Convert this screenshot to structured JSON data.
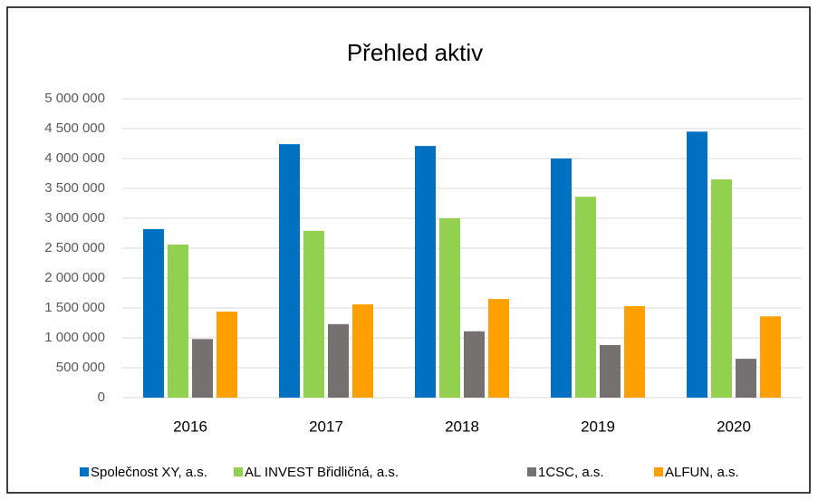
{
  "chart_data": {
    "type": "bar",
    "title": "Přehled aktiv",
    "categories": [
      "2016",
      "2017",
      "2018",
      "2019",
      "2020"
    ],
    "series": [
      {
        "name": "Společnost XY, a.s.",
        "color": "#0070c0",
        "values": [
          2820000,
          4240000,
          4210000,
          4000000,
          4450000
        ]
      },
      {
        "name": "AL INVEST Břidličná, a.s.",
        "color": "#92d050",
        "values": [
          2560000,
          2790000,
          3000000,
          3360000,
          3650000
        ]
      },
      {
        "name": "1CSC, a.s.",
        "color": "#767171",
        "values": [
          980000,
          1230000,
          1110000,
          880000,
          650000
        ]
      },
      {
        "name": "ALFUN, a.s.",
        "color": "#ffa000",
        "values": [
          1440000,
          1560000,
          1650000,
          1530000,
          1360000
        ]
      }
    ],
    "ylim": [
      0,
      5000000
    ],
    "yticks": [
      0,
      {
        "value": 500000,
        "label": "500 000"
      },
      {
        "value": 1000000,
        "label": "1 000 000"
      },
      {
        "value": 1500000,
        "label": "1 500 000"
      },
      {
        "value": 2000000,
        "label": "2 000 000"
      },
      {
        "value": 2500000,
        "label": "2 500 000"
      },
      {
        "value": 3000000,
        "label": "3 000 000"
      },
      {
        "value": 3500000,
        "label": "3 500 000"
      },
      {
        "value": 4000000,
        "label": "4 000 000"
      },
      {
        "value": 4500000,
        "label": "4 500 000"
      },
      {
        "value": 5000000,
        "label": "5 000 000"
      }
    ],
    "grid": true,
    "legend": "bottom"
  }
}
